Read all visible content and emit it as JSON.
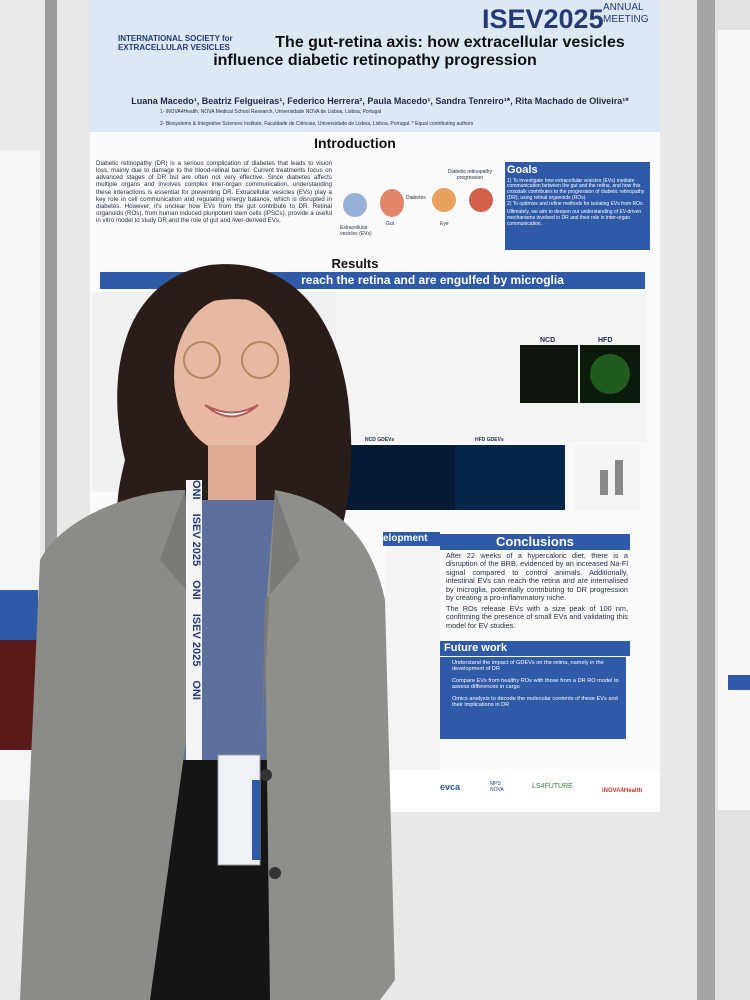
{
  "poster": {
    "event": "ISEV2025",
    "event_note": "ANNUAL MEETING",
    "society": "INTERNATIONAL SOCIETY for EXTRACELLULAR VESICLES",
    "title": "The gut-retina axis: how extracellular vesicles influence diabetic retinopathy progression",
    "authors": "Luana Macedo¹, Beatriz Felgueiras¹, Federico Herrera², Paula Macedo¹, Sandra Tenreiro¹*, Rita Machado de Oliveira¹*",
    "affiliations": [
      "1- iNOVA4Health, NOVA Medical School Research, Universidade NOVA de Lisboa, Lisboa, Portugal",
      "2- Biosystems & Integrative Sciences Institute, Faculdade de Ciências, Universidade de Lisboa, Lisboa, Portugal. * Equal contributing authors"
    ],
    "introduction": {
      "heading": "Introduction",
      "text": "Diabetic retinopathy (DR) is a serious complication of diabetes that leads to vision loss, mainly due to damage to the blood-retinal barrier. Current treatments focus on advanced stages of DR but are often not very effective. Since diabetes affects multiple organs and involves complex inter-organ communication, understanding these interactions is essential for preventing DR. Extracellular vesicles (EVs) play a key role in cell communication and regulating energy balance, which is disrupted in diabetes. However, it's unclear how EVs from the gut contribute to DR. Retinal organoids (ROs), from human induced pluripotent stem cells (iPSCs), provide a useful in vitro model to study DR and the role of gut and liver-derived EVs.",
      "diagram": [
        "Extracellular vesicles (EVs)",
        "Gut",
        "Diabetes",
        "Eye",
        "Diabetic retinopathy progression"
      ]
    },
    "goals": {
      "heading": "Goals",
      "items": [
        "1) To investigate how extracellular vesicles (EVs) mediate communication between the gut and the retina, and how this crosstalk contributes to the progression of diabetic retinopathy (DR), using retinal organoids (ROs).",
        "2) To optimize and refine methods for isolating EVs from ROs.",
        "Ultimately, we aim to deepen our understanding of EV-driven mechanisms involved in DR and their role in inter-organ communication."
      ]
    },
    "results": {
      "heading": "Results",
      "banner": "reach the retina and are engulfed by microglia",
      "panels": [
        "NCD",
        "HFD",
        "NCD GDEVs",
        "HFD GDEVs"
      ],
      "side_banner": "elopment"
    },
    "conclusions": {
      "heading": "Conclusions",
      "text": "After 22 weeks of a hypercaloric diet, there is a disruption of the BRB, evidenced by an increased Na-Fl signal compared to control animals. Additionally, intestinal EVs can reach the retina and are internalised by microglia, potentially contributing to DR progression by creating a pro-inflammatory niche.",
      "text2": "The ROs release EVs with a size peak of 100 nm, confirming the presence of small EVs and validating this model for EV studies."
    },
    "future": {
      "heading": "Future work",
      "items": [
        "Understand the impact of GDEVs on the retina, namely in the development of DR",
        "Compare EVs from healthy ROs with those from a DR RO model to assess differences in cargo",
        "Omics analysis to decode the molecular contents of these EVs and their implications in DR"
      ]
    },
    "sponsors": [
      "evca",
      "MPS NOVA",
      "LS4FUTURE",
      "iNOVA4Health"
    ]
  },
  "lanyard": [
    "ONI",
    "ISEV 2025",
    "ONI",
    "ISEV 2025",
    "ONI"
  ]
}
